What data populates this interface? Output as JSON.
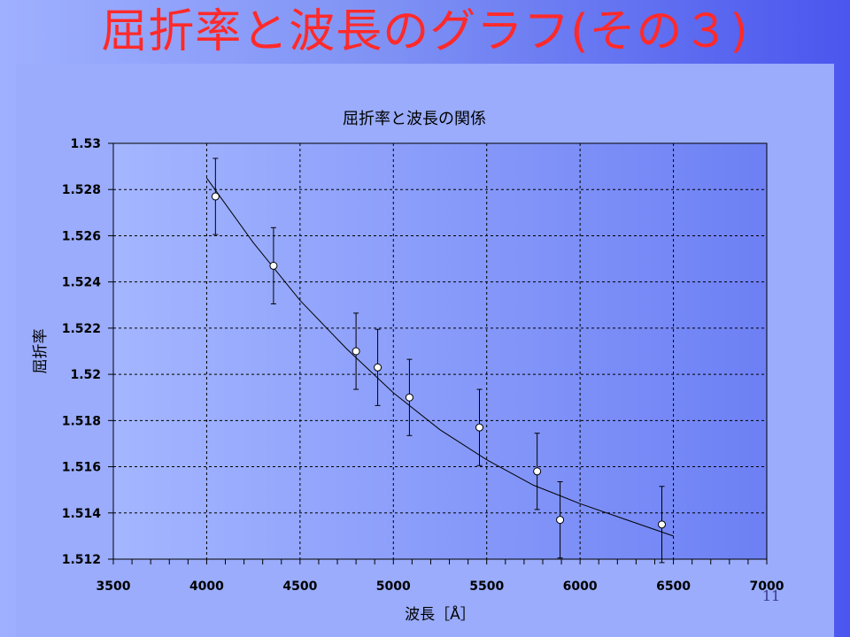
{
  "slide": {
    "title": "屈折率と波長のグラフ(その３)",
    "page_number": "11"
  },
  "colors": {
    "title": "#ff2a2a",
    "plot_bg_left": "#a4b6ff",
    "plot_bg_right": "#6d80f4",
    "curve": "#000000",
    "marker_fill": "#ffffff"
  },
  "chart_data": {
    "type": "scatter",
    "title": "屈折率と波長の関係",
    "xlabel": "波長［Å］",
    "ylabel": "屈折率",
    "xlim": [
      3500,
      7000
    ],
    "ylim": [
      1.512,
      1.53
    ],
    "x_ticks": [
      3500,
      4000,
      4500,
      5000,
      5500,
      6000,
      6500,
      7000
    ],
    "y_ticks": [
      1.512,
      1.514,
      1.516,
      1.518,
      1.52,
      1.522,
      1.524,
      1.526,
      1.528,
      1.53
    ],
    "x_tick_labels": [
      "3500",
      "4000",
      "4500",
      "5000",
      "5500",
      "6000",
      "6500",
      "7000"
    ],
    "y_tick_labels": [
      "1.512",
      "1.514",
      "1.516",
      "1.518",
      "1.52",
      "1.522",
      "1.524",
      "1.526",
      "1.528",
      "1.53"
    ],
    "grid": true,
    "grid_style": "dashed",
    "points": [
      {
        "x": 4047,
        "y": 1.5277,
        "err": 1.65
      },
      {
        "x": 4358,
        "y": 1.5247,
        "err": 1.65
      },
      {
        "x": 4800,
        "y": 1.521,
        "err": 1.65
      },
      {
        "x": 4916,
        "y": 1.5203,
        "err": 1.65
      },
      {
        "x": 5086,
        "y": 1.519,
        "err": 1.65
      },
      {
        "x": 5461,
        "y": 1.5177,
        "err": 1.65
      },
      {
        "x": 5770,
        "y": 1.5158,
        "err": 1.65
      },
      {
        "x": 5893,
        "y": 1.5137,
        "err": 1.65
      },
      {
        "x": 6438,
        "y": 1.5135,
        "err": 1.65
      }
    ],
    "error_unit": 0.001,
    "fit_curve": {
      "x": [
        4000,
        4250,
        4500,
        4750,
        5000,
        5250,
        5500,
        5750,
        6000,
        6250,
        6500
      ],
      "y": [
        1.5285,
        1.5257,
        1.5232,
        1.5211,
        1.5192,
        1.5176,
        1.5163,
        1.5152,
        1.5144,
        1.5137,
        1.513
      ]
    }
  }
}
